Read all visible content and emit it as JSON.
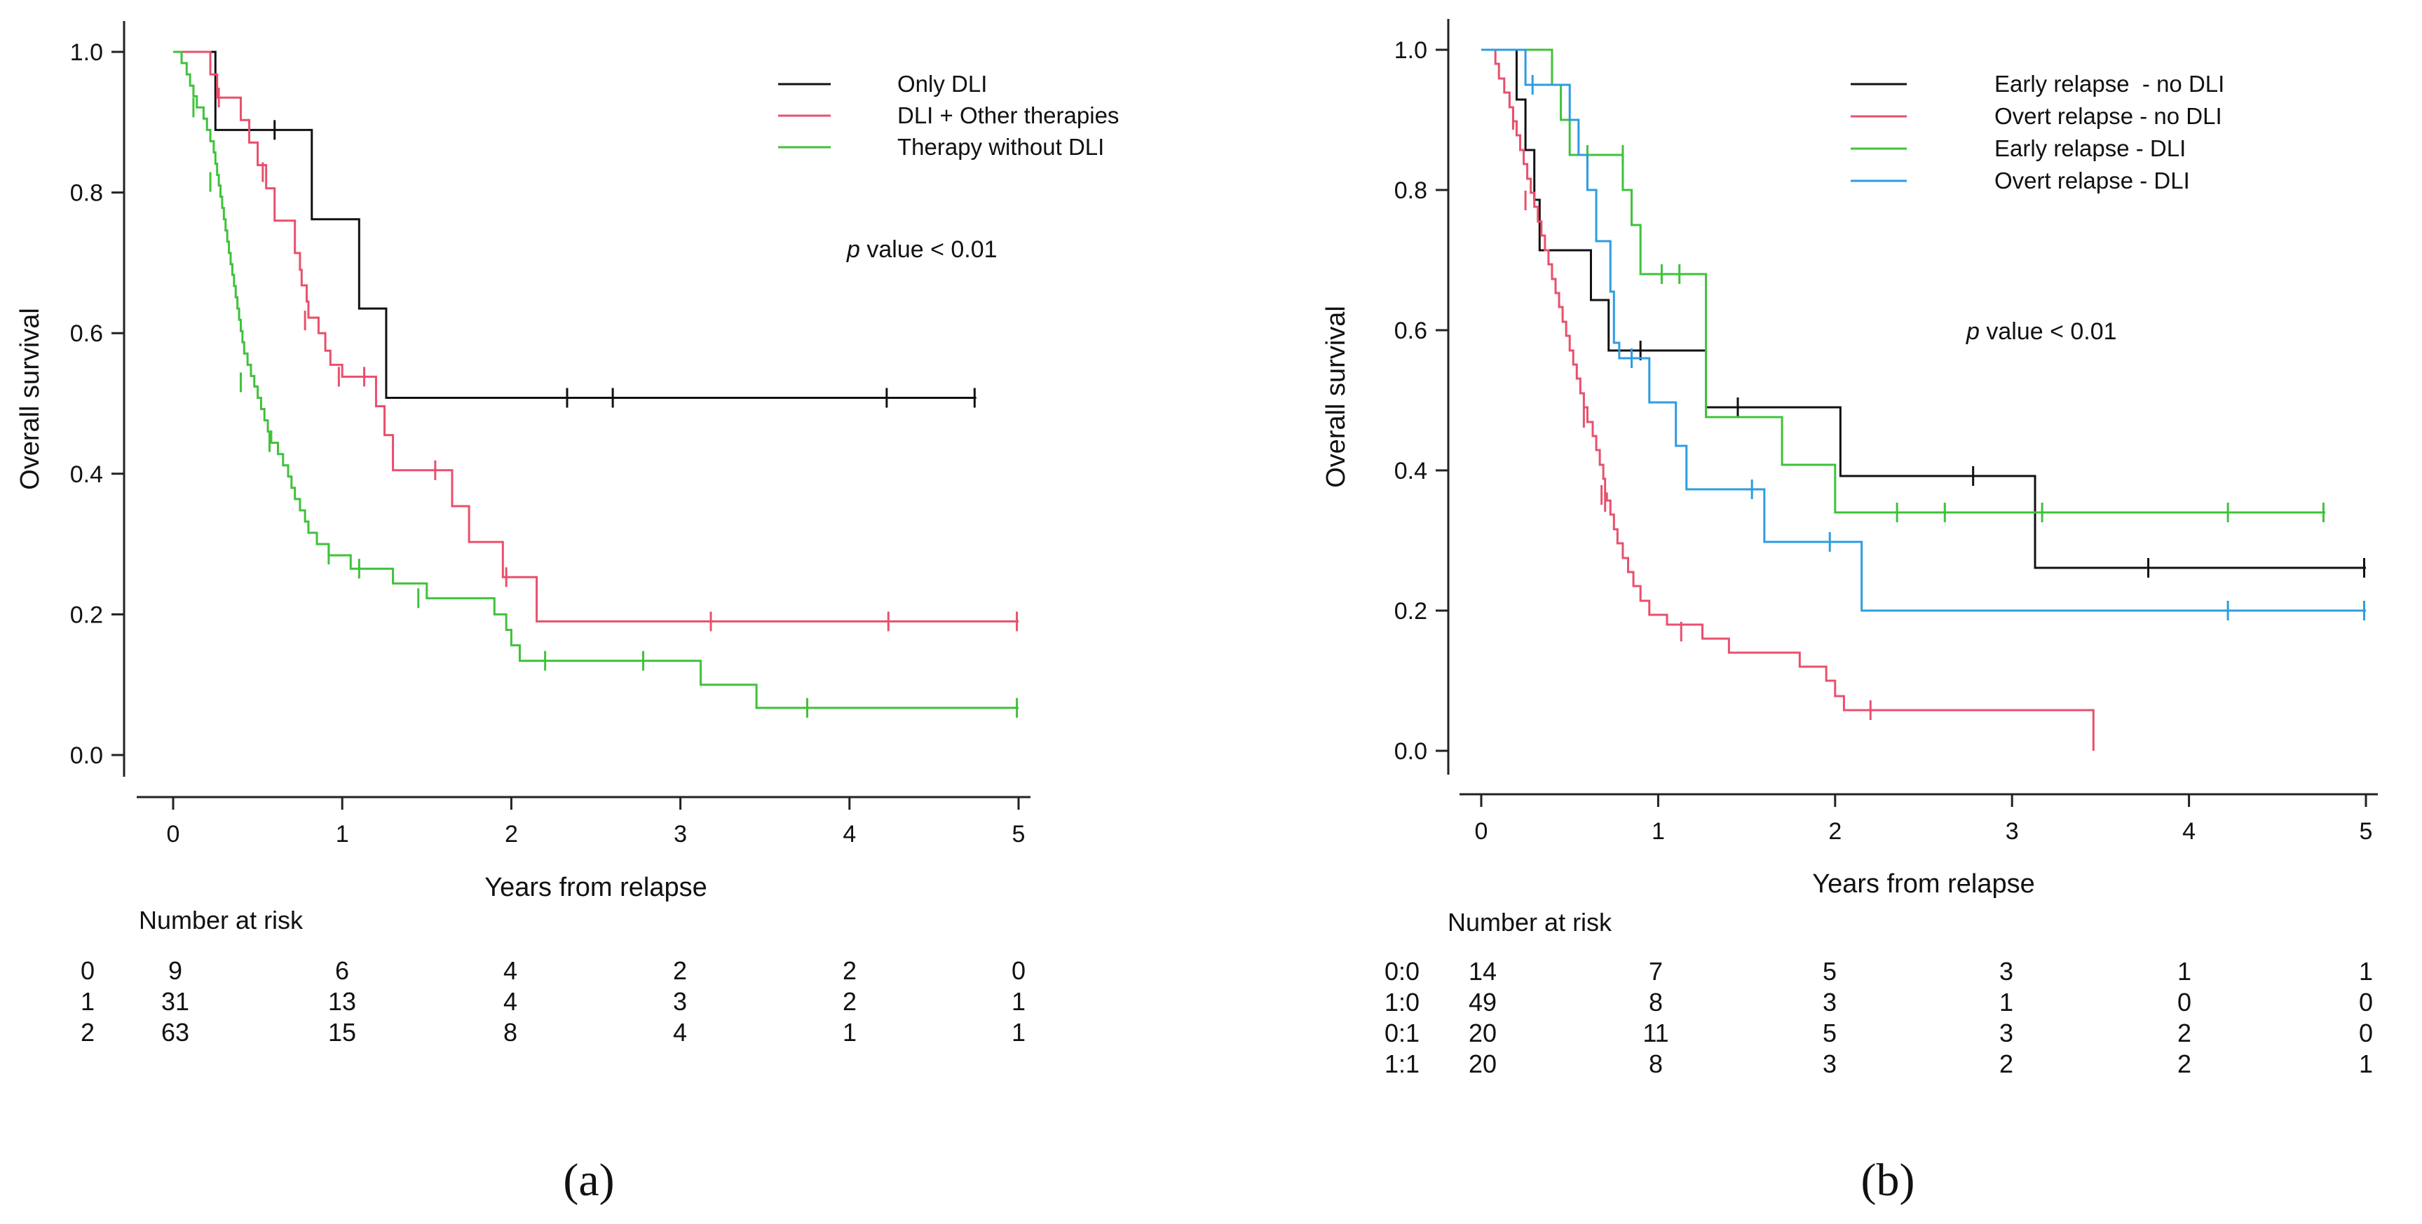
{
  "chart_data": [
    {
      "id": "a",
      "type": "line",
      "subtype": "kaplan-meier",
      "panel_label": "(a)",
      "xlabel": "Years from relapse",
      "ylabel": "Overall survival",
      "xlim": [
        0,
        5
      ],
      "ylim": [
        0,
        1
      ],
      "xticks": [
        "0",
        "1",
        "2",
        "3",
        "4",
        "5"
      ],
      "yticks": [
        "0.0",
        "0.2",
        "0.4",
        "0.6",
        "0.8",
        "1.0"
      ],
      "p_value": {
        "italic": "p",
        "rest": " value < 0.01"
      },
      "legend_position": "top-right",
      "series": [
        {
          "name": "Only DLI",
          "color": "#111111",
          "steps": [
            [
              0,
              1.0
            ],
            [
              0.25,
              0.889
            ],
            [
              0.82,
              0.762
            ],
            [
              1.1,
              0.635
            ],
            [
              1.26,
              0.508
            ]
          ],
          "end": 4.75,
          "censor": [
            [
              0.6,
              0.889
            ],
            [
              2.33,
              0.508
            ],
            [
              2.6,
              0.508
            ],
            [
              4.22,
              0.508
            ],
            [
              4.74,
              0.508
            ]
          ]
        },
        {
          "name": "DLI + Other therapies",
          "color": "#e8506c",
          "steps": [
            [
              0,
              1.0
            ],
            [
              0.22,
              0.968
            ],
            [
              0.26,
              0.935
            ],
            [
              0.4,
              0.903
            ],
            [
              0.45,
              0.871
            ],
            [
              0.5,
              0.839
            ],
            [
              0.55,
              0.806
            ],
            [
              0.6,
              0.76
            ],
            [
              0.72,
              0.714
            ],
            [
              0.75,
              0.69
            ],
            [
              0.76,
              0.668
            ],
            [
              0.79,
              0.645
            ],
            [
              0.8,
              0.622
            ],
            [
              0.86,
              0.6
            ],
            [
              0.9,
              0.575
            ],
            [
              0.93,
              0.555
            ],
            [
              1.0,
              0.538
            ],
            [
              1.2,
              0.496
            ],
            [
              1.25,
              0.455
            ],
            [
              1.3,
              0.405
            ],
            [
              1.65,
              0.354
            ],
            [
              1.75,
              0.303
            ],
            [
              1.95,
              0.253
            ],
            [
              2.15,
              0.19
            ]
          ],
          "end": 5.0,
          "censor": [
            [
              0.27,
              0.935
            ],
            [
              0.53,
              0.829
            ],
            [
              0.78,
              0.618
            ],
            [
              0.98,
              0.538
            ],
            [
              1.13,
              0.538
            ],
            [
              1.55,
              0.405
            ],
            [
              1.97,
              0.253
            ],
            [
              3.18,
              0.19
            ],
            [
              4.23,
              0.19
            ],
            [
              4.99,
              0.19
            ]
          ]
        },
        {
          "name": "Therapy without DLI",
          "color": "#3fc23a",
          "steps": [
            [
              0,
              1.0
            ],
            [
              0.05,
              0.984
            ],
            [
              0.08,
              0.968
            ],
            [
              0.1,
              0.952
            ],
            [
              0.12,
              0.937
            ],
            [
              0.14,
              0.921
            ],
            [
              0.18,
              0.905
            ],
            [
              0.2,
              0.889
            ],
            [
              0.22,
              0.873
            ],
            [
              0.24,
              0.857
            ],
            [
              0.25,
              0.841
            ],
            [
              0.26,
              0.825
            ],
            [
              0.27,
              0.81
            ],
            [
              0.28,
              0.794
            ],
            [
              0.29,
              0.778
            ],
            [
              0.3,
              0.762
            ],
            [
              0.31,
              0.746
            ],
            [
              0.32,
              0.73
            ],
            [
              0.33,
              0.714
            ],
            [
              0.34,
              0.698
            ],
            [
              0.35,
              0.683
            ],
            [
              0.36,
              0.667
            ],
            [
              0.37,
              0.651
            ],
            [
              0.38,
              0.635
            ],
            [
              0.39,
              0.619
            ],
            [
              0.4,
              0.603
            ],
            [
              0.41,
              0.587
            ],
            [
              0.42,
              0.571
            ],
            [
              0.44,
              0.555
            ],
            [
              0.46,
              0.539
            ],
            [
              0.48,
              0.524
            ],
            [
              0.5,
              0.508
            ],
            [
              0.52,
              0.492
            ],
            [
              0.54,
              0.476
            ],
            [
              0.56,
              0.46
            ],
            [
              0.58,
              0.444
            ],
            [
              0.62,
              0.428
            ],
            [
              0.65,
              0.412
            ],
            [
              0.68,
              0.396
            ],
            [
              0.7,
              0.38
            ],
            [
              0.72,
              0.364
            ],
            [
              0.75,
              0.348
            ],
            [
              0.78,
              0.332
            ],
            [
              0.8,
              0.316
            ],
            [
              0.85,
              0.3
            ],
            [
              0.92,
              0.284
            ],
            [
              1.05,
              0.265
            ],
            [
              1.3,
              0.244
            ],
            [
              1.5,
              0.223
            ],
            [
              1.9,
              0.2
            ],
            [
              1.97,
              0.178
            ],
            [
              2.0,
              0.156
            ],
            [
              2.05,
              0.134
            ],
            [
              3.12,
              0.1
            ],
            [
              3.45,
              0.067
            ]
          ],
          "end": 5.0,
          "censor": [
            [
              0.12,
              0.921
            ],
            [
              0.22,
              0.815
            ],
            [
              0.4,
              0.53
            ],
            [
              0.57,
              0.445
            ],
            [
              0.92,
              0.285
            ],
            [
              1.1,
              0.265
            ],
            [
              1.45,
              0.223
            ],
            [
              2.2,
              0.134
            ],
            [
              2.78,
              0.134
            ],
            [
              3.75,
              0.067
            ],
            [
              4.99,
              0.067
            ]
          ]
        }
      ],
      "risk_table": {
        "title": "Number at risk",
        "rows": [
          {
            "label": "0",
            "values": [
              "9",
              "6",
              "4",
              "2",
              "2",
              "0"
            ]
          },
          {
            "label": "1",
            "values": [
              "31",
              "13",
              "4",
              "3",
              "2",
              "1"
            ]
          },
          {
            "label": "2",
            "values": [
              "63",
              "15",
              "8",
              "4",
              "1",
              "1"
            ]
          }
        ]
      }
    },
    {
      "id": "b",
      "type": "line",
      "subtype": "kaplan-meier",
      "panel_label": "(b)",
      "xlabel": "Years from relapse",
      "ylabel": "Overall survival",
      "xlim": [
        0,
        5
      ],
      "ylim": [
        0,
        1
      ],
      "xticks": [
        "0",
        "1",
        "2",
        "3",
        "4",
        "5"
      ],
      "yticks": [
        "0.0",
        "0.2",
        "0.4",
        "0.6",
        "0.8",
        "1.0"
      ],
      "p_value": {
        "italic": "p",
        "rest": " value < 0.01"
      },
      "legend_position": "top-right",
      "series": [
        {
          "name": "Early relapse  - no DLI",
          "color": "#111111",
          "steps": [
            [
              0,
              1.0
            ],
            [
              0.2,
              0.929
            ],
            [
              0.25,
              0.857
            ],
            [
              0.3,
              0.786
            ],
            [
              0.33,
              0.714
            ],
            [
              0.62,
              0.643
            ],
            [
              0.72,
              0.571
            ],
            [
              1.27,
              0.49
            ],
            [
              2.03,
              0.392
            ],
            [
              3.13,
              0.261
            ]
          ],
          "end": 5.0,
          "censor": [
            [
              0.9,
              0.571
            ],
            [
              1.45,
              0.49
            ],
            [
              2.78,
              0.392
            ],
            [
              3.77,
              0.261
            ],
            [
              4.99,
              0.261
            ]
          ]
        },
        {
          "name": "Overt relapse - no DLI",
          "color": "#e8506c",
          "steps": [
            [
              0,
              1.0
            ],
            [
              0.08,
              0.98
            ],
            [
              0.1,
              0.959
            ],
            [
              0.13,
              0.939
            ],
            [
              0.16,
              0.918
            ],
            [
              0.18,
              0.898
            ],
            [
              0.2,
              0.878
            ],
            [
              0.22,
              0.857
            ],
            [
              0.24,
              0.837
            ],
            [
              0.26,
              0.816
            ],
            [
              0.28,
              0.796
            ],
            [
              0.3,
              0.776
            ],
            [
              0.32,
              0.755
            ],
            [
              0.34,
              0.735
            ],
            [
              0.36,
              0.714
            ],
            [
              0.38,
              0.694
            ],
            [
              0.4,
              0.673
            ],
            [
              0.42,
              0.653
            ],
            [
              0.44,
              0.633
            ],
            [
              0.46,
              0.612
            ],
            [
              0.48,
              0.592
            ],
            [
              0.5,
              0.571
            ],
            [
              0.52,
              0.551
            ],
            [
              0.54,
              0.531
            ],
            [
              0.56,
              0.51
            ],
            [
              0.58,
              0.49
            ],
            [
              0.6,
              0.469
            ],
            [
              0.63,
              0.449
            ],
            [
              0.65,
              0.429
            ],
            [
              0.67,
              0.408
            ],
            [
              0.69,
              0.388
            ],
            [
              0.7,
              0.367
            ],
            [
              0.71,
              0.357
            ],
            [
              0.73,
              0.337
            ],
            [
              0.75,
              0.316
            ],
            [
              0.77,
              0.296
            ],
            [
              0.8,
              0.275
            ],
            [
              0.83,
              0.255
            ],
            [
              0.86,
              0.235
            ],
            [
              0.9,
              0.214
            ],
            [
              0.95,
              0.194
            ],
            [
              1.05,
              0.18
            ],
            [
              1.25,
              0.16
            ],
            [
              1.4,
              0.14
            ],
            [
              1.8,
              0.12
            ],
            [
              1.95,
              0.1
            ],
            [
              2.0,
              0.078
            ],
            [
              2.05,
              0.058
            ]
          ],
          "end": 3.46,
          "endDrop": 0.0,
          "censor": [
            [
              0.18,
              0.9
            ],
            [
              0.25,
              0.785
            ],
            [
              0.58,
              0.475
            ],
            [
              0.68,
              0.365
            ],
            [
              0.7,
              0.355
            ],
            [
              1.13,
              0.17
            ],
            [
              2.2,
              0.058
            ]
          ]
        },
        {
          "name": "Early relapse - DLI",
          "color": "#3fc23a",
          "steps": [
            [
              0,
              1.0
            ],
            [
              0.4,
              0.95
            ],
            [
              0.45,
              0.9
            ],
            [
              0.5,
              0.85
            ],
            [
              0.8,
              0.8
            ],
            [
              0.85,
              0.75
            ],
            [
              0.9,
              0.68
            ],
            [
              1.27,
              0.476
            ],
            [
              1.7,
              0.408
            ],
            [
              2.0,
              0.34
            ]
          ],
          "end": 4.77,
          "censor": [
            [
              0.6,
              0.85
            ],
            [
              0.8,
              0.85
            ],
            [
              1.02,
              0.68
            ],
            [
              1.12,
              0.68
            ],
            [
              2.35,
              0.34
            ],
            [
              2.62,
              0.34
            ],
            [
              3.17,
              0.34
            ],
            [
              4.22,
              0.34
            ],
            [
              4.76,
              0.34
            ]
          ]
        },
        {
          "name": "Overt relapse - DLI",
          "color": "#2d9de0",
          "steps": [
            [
              0,
              1.0
            ],
            [
              0.25,
              0.95
            ],
            [
              0.5,
              0.9
            ],
            [
              0.55,
              0.85
            ],
            [
              0.6,
              0.8
            ],
            [
              0.65,
              0.727
            ],
            [
              0.73,
              0.655
            ],
            [
              0.75,
              0.582
            ],
            [
              0.78,
              0.56
            ],
            [
              0.95,
              0.497
            ],
            [
              1.1,
              0.435
            ],
            [
              1.16,
              0.373
            ],
            [
              1.6,
              0.298
            ],
            [
              2.15,
              0.2
            ]
          ],
          "end": 5.0,
          "censor": [
            [
              0.29,
              0.95
            ],
            [
              0.85,
              0.56
            ],
            [
              1.53,
              0.373
            ],
            [
              1.97,
              0.298
            ],
            [
              4.22,
              0.2
            ],
            [
              4.99,
              0.2
            ]
          ]
        }
      ],
      "risk_table": {
        "title": "Number at risk",
        "rows": [
          {
            "label": "0:0",
            "values": [
              "14",
              "7",
              "5",
              "3",
              "1",
              "1"
            ]
          },
          {
            "label": "1:0",
            "values": [
              "49",
              "8",
              "3",
              "1",
              "0",
              "0"
            ]
          },
          {
            "label": "0:1",
            "values": [
              "20",
              "11",
              "5",
              "3",
              "2",
              "0"
            ]
          },
          {
            "label": "1:1",
            "values": [
              "20",
              "8",
              "3",
              "2",
              "2",
              "1"
            ]
          }
        ]
      }
    }
  ]
}
